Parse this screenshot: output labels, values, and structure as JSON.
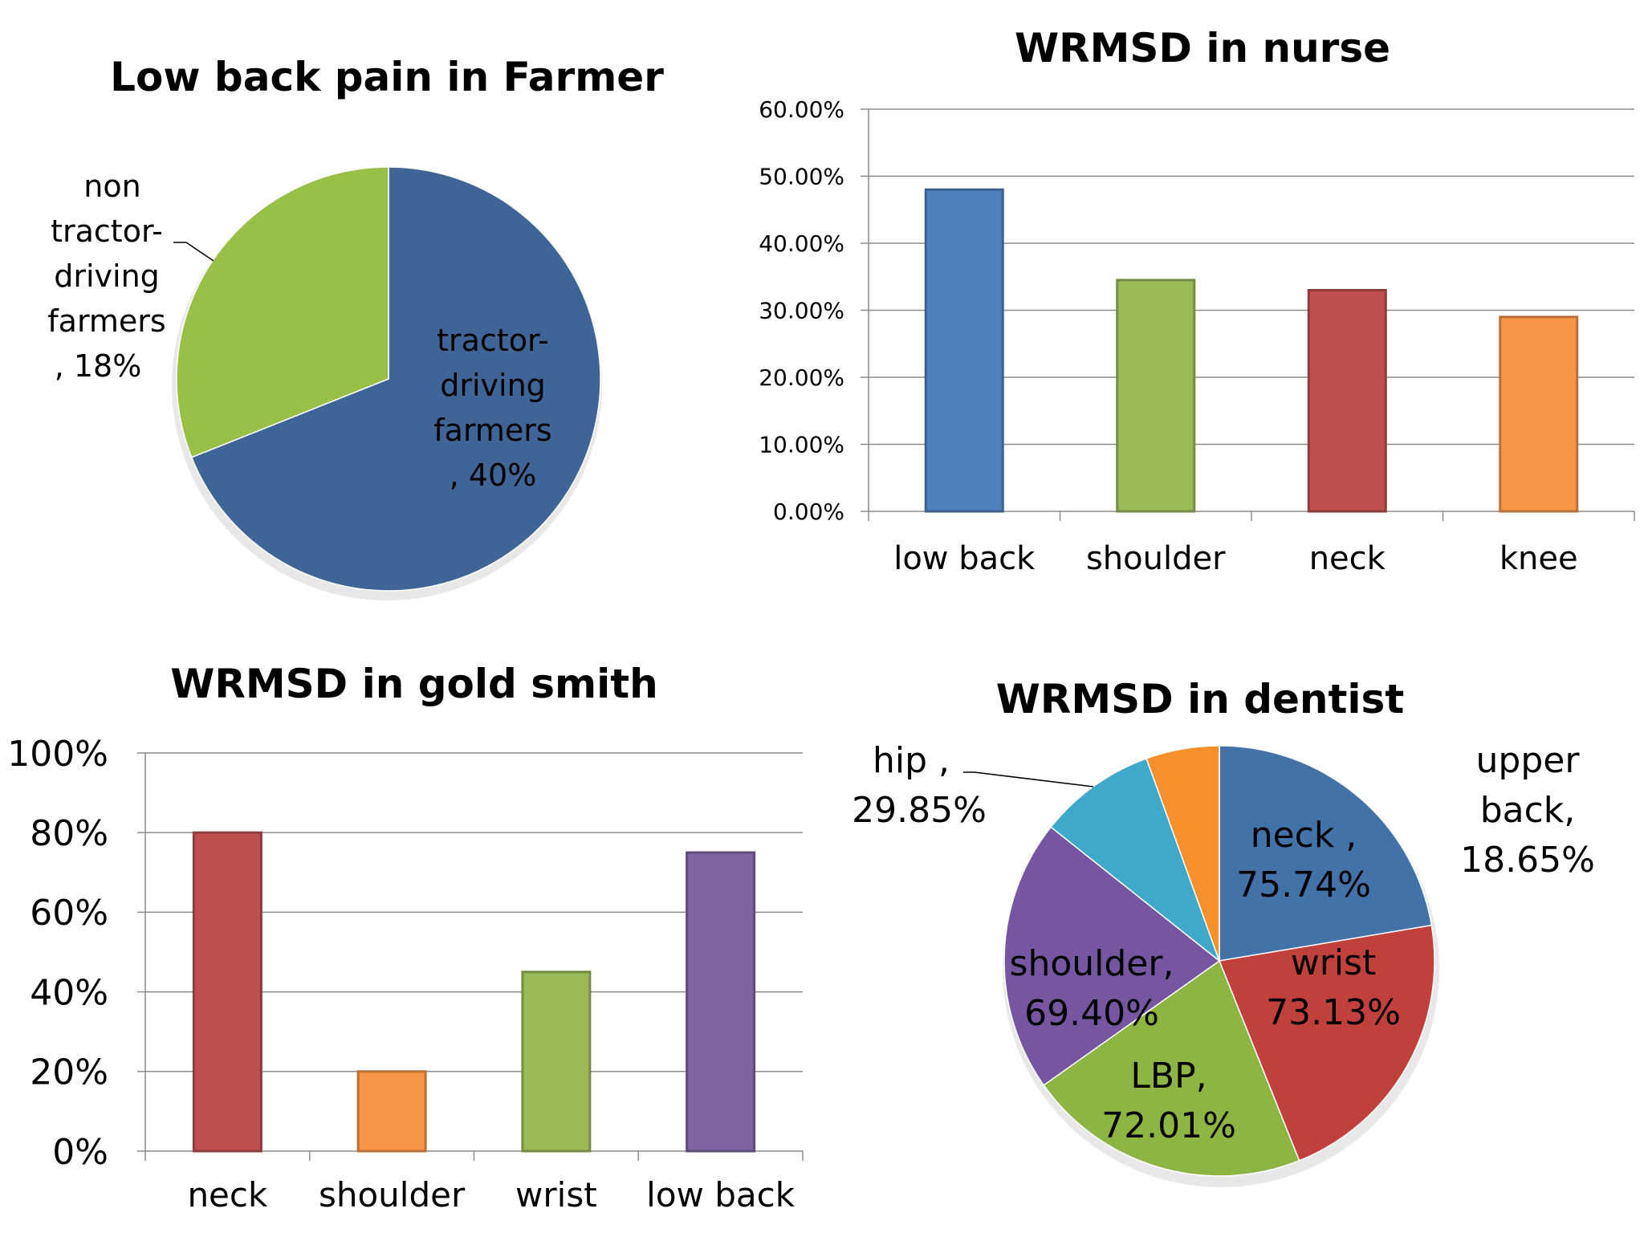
{
  "colors": {
    "blue": "#4F81BD",
    "green": "#9BBB59",
    "red": "#C0504D",
    "orange": "#F79646",
    "purple": "#8064A2",
    "cyan": "#4BACC6",
    "grid": "#8c8c8c",
    "axis": "#8c8c8c"
  },
  "chart_data": [
    {
      "id": "farmer",
      "type": "pie",
      "title": "Low back pain in Farmer",
      "slices": [
        {
          "name": "tractor-driving farmers",
          "value": 40,
          "label_lines": [
            "tractor-",
            "driving",
            "farmers",
            ", 40%"
          ],
          "color": "#3E6596"
        },
        {
          "name": "non tractor-driving farmers",
          "value": 18,
          "label_lines": [
            "non",
            "tractor-",
            "driving",
            "farmers",
            ", 18%"
          ],
          "color": "#98C047"
        }
      ]
    },
    {
      "id": "nurse",
      "type": "bar",
      "title": "WRMSD in nurse",
      "categories": [
        "low back",
        "shoulder",
        "neck",
        "knee"
      ],
      "values": [
        48.0,
        34.5,
        33.0,
        29.0
      ],
      "colors": [
        "#4F81BD",
        "#9BBB59",
        "#C0504D",
        "#F79646"
      ],
      "ylim": [
        0,
        60
      ],
      "yticks": [
        "0.00%",
        "10.00%",
        "20.00%",
        "30.00%",
        "40.00%",
        "50.00%",
        "60.00%"
      ]
    },
    {
      "id": "goldsmith",
      "type": "bar",
      "title": "WRMSD in gold smith",
      "categories": [
        "neck",
        "shoulder",
        "wrist",
        "low back"
      ],
      "values": [
        80,
        20,
        45,
        75
      ],
      "colors": [
        "#C0504D",
        "#F79646",
        "#9BBB59",
        "#8064A2"
      ],
      "ylim": [
        0,
        100
      ],
      "yticks": [
        "0%",
        "20%",
        "40%",
        "60%",
        "80%",
        "100%"
      ]
    },
    {
      "id": "dentist",
      "type": "pie",
      "title": "WRMSD in dentist",
      "slices": [
        {
          "name": "neck",
          "value": 75.74,
          "label_lines": [
            "neck ,",
            "75.74%"
          ],
          "color": "#4372A8"
        },
        {
          "name": "wrist",
          "value": 73.13,
          "label_lines": [
            "wrist",
            "73.13%"
          ],
          "color": "#C0403C"
        },
        {
          "name": "LBP",
          "value": 72.01,
          "label_lines": [
            "LBP,",
            "72.01%"
          ],
          "color": "#8DB543"
        },
        {
          "name": "shoulder",
          "value": 69.4,
          "label_lines": [
            "shoulder,",
            "69.40%"
          ],
          "color": "#7656A0"
        },
        {
          "name": "hip",
          "value": 29.85,
          "label_lines": [
            "hip ,",
            "29.85%"
          ],
          "color": "#3FA9CC"
        },
        {
          "name": "upper back",
          "value": 18.65,
          "label_lines": [
            "upper",
            "back,",
            "18.65%"
          ],
          "color": "#F6902C"
        }
      ]
    }
  ]
}
